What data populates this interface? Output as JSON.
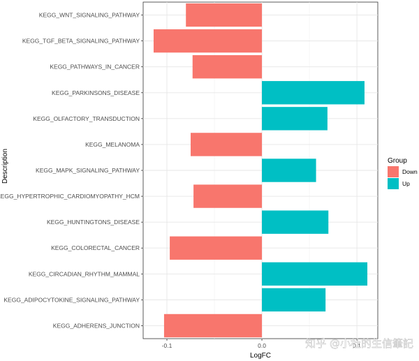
{
  "chart_data": {
    "type": "bar",
    "orientation": "horizontal",
    "xlabel": "LogFC",
    "ylabel": "Description",
    "xlim": [
      -0.125,
      0.122
    ],
    "xticks": [
      -0.1,
      0.0,
      0.1
    ],
    "xtick_labels": [
      "-0.1",
      "0.0",
      "0.1"
    ],
    "grid": true,
    "legend": {
      "title": "Group",
      "placement": "right",
      "entries": [
        {
          "label": "Down",
          "color": "#F8766D"
        },
        {
          "label": "Up",
          "color": "#00BFC4"
        }
      ]
    },
    "colors": {
      "Down": "#F8766D",
      "Up": "#00BFC4"
    },
    "categories": [
      "KEGG_WNT_SIGNALING_PATHWAY",
      "KEGG_TGF_BETA_SIGNALING_PATHWAY",
      "KEGG_PATHWAYS_IN_CANCER",
      "KEGG_PARKINSONS_DISEASE",
      "KEGG_OLFACTORY_TRANSDUCTION",
      "KEGG_MELANOMA",
      "KEGG_MAPK_SIGNALING_PATHWAY",
      "KEGG_HYPERTROPHIC_CARDIOMYOPATHY_HCM",
      "KEGG_HUNTINGTONS_DISEASE",
      "KEGG_COLORECTAL_CANCER",
      "KEGG_CIRCADIAN_RHYTHM_MAMMAL",
      "KEGG_ADIPOCYTOKINE_SIGNALING_PATHWAY",
      "KEGG_ADHERENS_JUNCTION"
    ],
    "values": [
      -0.08,
      -0.114,
      -0.073,
      0.108,
      0.069,
      -0.075,
      0.057,
      -0.072,
      0.07,
      -0.097,
      0.111,
      0.067,
      -0.103
    ],
    "groups": [
      "Down",
      "Down",
      "Down",
      "Up",
      "Up",
      "Down",
      "Up",
      "Down",
      "Up",
      "Down",
      "Up",
      "Up",
      "Down"
    ]
  },
  "watermark": "知乎 @小杜的生信筆記"
}
